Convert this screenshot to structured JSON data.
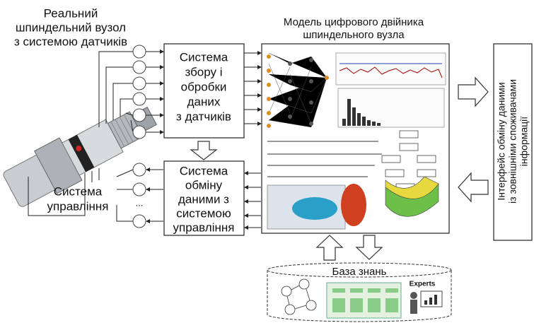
{
  "spindle_title": [
    "Реальний",
    "шпиндельний вузол",
    "з системою датчиків"
  ],
  "acquisition_box": [
    "Система",
    "збору і",
    "обробки",
    "даних",
    "з датчиків"
  ],
  "exchange_box": [
    "Система",
    "обміну",
    "даними з",
    "системою",
    "управління"
  ],
  "control_system": [
    "Система",
    "управління"
  ],
  "model_title": [
    "Модель цифрового двійника",
    "шпиндельного вузла"
  ],
  "interface_box": [
    "Інтерфейс обміну даними",
    "із зовнішніми споживачами",
    "інформації"
  ],
  "knowledge_base": "База знань",
  "experts": "Experts",
  "ellipsis": "..."
}
